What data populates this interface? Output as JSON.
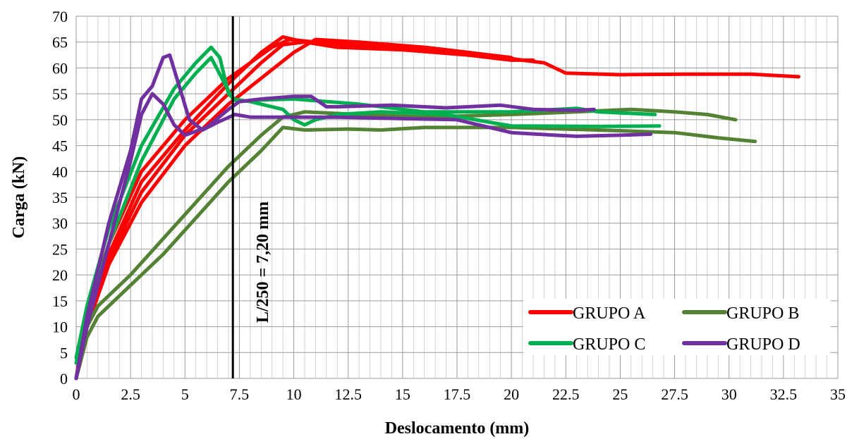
{
  "chart_data": {
    "type": "line",
    "xlabel": "Deslocamento (mm)",
    "ylabel": "Carga (kN)",
    "xlim": [
      0,
      35
    ],
    "ylim": [
      0,
      70
    ],
    "xticks": [
      "0",
      "2.5",
      "5",
      "7.5",
      "10",
      "12.5",
      "15",
      "17.5",
      "20",
      "22.5",
      "25",
      "27.5",
      "30",
      "32.5",
      "35"
    ],
    "yticks": [
      "0",
      "5",
      "10",
      "15",
      "20",
      "25",
      "30",
      "35",
      "40",
      "45",
      "50",
      "55",
      "60",
      "65",
      "70"
    ],
    "grid": true,
    "legend_position": "bottom-right",
    "reference_line": {
      "x": 7.2,
      "label": "L/250 = 7,20 mm",
      "color": "#000000"
    },
    "legend": [
      {
        "label": "GRUPO A",
        "color": "#ff0000"
      },
      {
        "label": "GRUPO B",
        "color": "#548235"
      },
      {
        "label": "GRUPO C",
        "color": "#00b050"
      },
      {
        "label": "GRUPO D",
        "color": "#7030a0"
      }
    ],
    "series": [
      {
        "name": "GRUPO A",
        "color": "#ff0000",
        "points": [
          [
            0,
            0
          ],
          [
            0.5,
            12
          ],
          [
            1.5,
            24
          ],
          [
            3,
            38
          ],
          [
            5,
            48
          ],
          [
            7,
            57
          ],
          [
            8.5,
            63
          ],
          [
            9.5,
            66
          ],
          [
            10.5,
            65
          ],
          [
            12,
            64
          ],
          [
            15,
            63.5
          ],
          [
            18,
            62.5
          ],
          [
            20,
            61.5
          ],
          [
            21,
            61.5
          ]
        ]
      },
      {
        "name": "GRUPO A",
        "color": "#ff0000",
        "points": [
          [
            0,
            0
          ],
          [
            0.5,
            10
          ],
          [
            1.5,
            22
          ],
          [
            3,
            34
          ],
          [
            5,
            45
          ],
          [
            7,
            53
          ],
          [
            8.5,
            58
          ],
          [
            10,
            63
          ],
          [
            11,
            65.5
          ],
          [
            13,
            65
          ],
          [
            16,
            64
          ],
          [
            18,
            63
          ],
          [
            20.5,
            61.5
          ],
          [
            21.5,
            61
          ],
          [
            22.5,
            59
          ],
          [
            25,
            58.7
          ],
          [
            28,
            58.8
          ],
          [
            31,
            58.8
          ],
          [
            33.2,
            58.3
          ]
        ]
      },
      {
        "name": "GRUPO A",
        "color": "#ff0000",
        "points": [
          [
            0,
            0
          ],
          [
            0.5,
            11
          ],
          [
            1.5,
            23
          ],
          [
            3,
            36
          ],
          [
            5,
            47
          ],
          [
            7,
            55
          ],
          [
            8.5,
            61
          ],
          [
            9.5,
            64.5
          ],
          [
            10.5,
            65
          ],
          [
            13,
            64.5
          ],
          [
            16,
            64
          ],
          [
            18,
            63
          ],
          [
            20,
            62
          ]
        ]
      },
      {
        "name": "GRUPO A",
        "color": "#ff0000",
        "points": [
          [
            0,
            0
          ],
          [
            0.5,
            13
          ],
          [
            1.5,
            26
          ],
          [
            3,
            40
          ],
          [
            5,
            50
          ],
          [
            7,
            58
          ],
          [
            8,
            61
          ],
          [
            9,
            64
          ],
          [
            9.8,
            65.5
          ],
          [
            11,
            65
          ],
          [
            14,
            64
          ],
          [
            17,
            63
          ],
          [
            19.5,
            62
          ]
        ]
      },
      {
        "name": "GRUPO B",
        "color": "#548235",
        "points": [
          [
            0,
            0
          ],
          [
            0.5,
            8
          ],
          [
            1,
            12
          ],
          [
            2.5,
            18
          ],
          [
            4,
            24
          ],
          [
            5.5,
            31
          ],
          [
            7,
            38
          ],
          [
            8.5,
            44
          ],
          [
            9.5,
            48.5
          ],
          [
            10.5,
            48
          ],
          [
            12.5,
            48.2
          ],
          [
            14,
            48
          ],
          [
            16,
            48.5
          ],
          [
            18.5,
            48.5
          ],
          [
            20,
            48.5
          ],
          [
            24,
            48
          ],
          [
            27.5,
            47.5
          ],
          [
            29.5,
            46.5
          ],
          [
            31.2,
            45.8
          ]
        ]
      },
      {
        "name": "GRUPO B",
        "color": "#548235",
        "points": [
          [
            0,
            0
          ],
          [
            0.5,
            10
          ],
          [
            1,
            14
          ],
          [
            2.5,
            20
          ],
          [
            4,
            27
          ],
          [
            5.5,
            34
          ],
          [
            7,
            41
          ],
          [
            8.5,
            47
          ],
          [
            9.5,
            50.5
          ],
          [
            10.5,
            51.5
          ],
          [
            13,
            51
          ],
          [
            16,
            50.5
          ],
          [
            20,
            51
          ],
          [
            23,
            51.5
          ],
          [
            25.5,
            52
          ],
          [
            27.5,
            51.5
          ],
          [
            29,
            51
          ],
          [
            30.3,
            50
          ]
        ]
      },
      {
        "name": "GRUPO C",
        "color": "#00b050",
        "points": [
          [
            0,
            3
          ],
          [
            0.5,
            12
          ],
          [
            1.5,
            26
          ],
          [
            3,
            42
          ],
          [
            4.5,
            54
          ],
          [
            5.5,
            59
          ],
          [
            6.2,
            62
          ],
          [
            6.7,
            58
          ],
          [
            7.2,
            54
          ],
          [
            8,
            53.5
          ],
          [
            9.5,
            52
          ],
          [
            10,
            50
          ],
          [
            10.5,
            49
          ],
          [
            11,
            50
          ],
          [
            12,
            51
          ],
          [
            14,
            51.5
          ],
          [
            17,
            51
          ],
          [
            19,
            49.5
          ],
          [
            20,
            48.8
          ],
          [
            24,
            48.7
          ],
          [
            26.8,
            48.8
          ]
        ]
      },
      {
        "name": "GRUPO C",
        "color": "#00b050",
        "points": [
          [
            0,
            4
          ],
          [
            0.5,
            14
          ],
          [
            1.5,
            29
          ],
          [
            3,
            45
          ],
          [
            4.5,
            56
          ],
          [
            5.5,
            61
          ],
          [
            6.2,
            64
          ],
          [
            6.6,
            62
          ],
          [
            7,
            55
          ],
          [
            7.4,
            53.5
          ],
          [
            8.5,
            53.8
          ],
          [
            10,
            54
          ],
          [
            13,
            53
          ],
          [
            16,
            51.5
          ],
          [
            20,
            51.5
          ],
          [
            23,
            52.2
          ],
          [
            24,
            51.5
          ],
          [
            26.6,
            51
          ]
        ]
      },
      {
        "name": "GRUPO D",
        "color": "#7030a0",
        "points": [
          [
            0,
            0
          ],
          [
            0.5,
            12
          ],
          [
            1.5,
            30
          ],
          [
            2.5,
            44
          ],
          [
            3,
            54
          ],
          [
            3.5,
            56.5
          ],
          [
            4,
            62
          ],
          [
            4.3,
            62.5
          ],
          [
            4.7,
            57
          ],
          [
            5.2,
            50
          ],
          [
            5.8,
            48
          ],
          [
            6.5,
            49.5
          ],
          [
            7.3,
            51
          ],
          [
            8,
            50.5
          ],
          [
            9.5,
            50.5
          ],
          [
            12,
            50.5
          ],
          [
            15,
            50.2
          ],
          [
            17.5,
            50
          ],
          [
            19,
            48.5
          ],
          [
            20,
            47.5
          ],
          [
            22,
            47
          ],
          [
            23,
            46.8
          ],
          [
            25,
            47
          ],
          [
            26.4,
            47.2
          ]
        ]
      },
      {
        "name": "GRUPO D",
        "color": "#7030a0",
        "points": [
          [
            0,
            0
          ],
          [
            0.5,
            10
          ],
          [
            1.5,
            26
          ],
          [
            2.5,
            42
          ],
          [
            3,
            51
          ],
          [
            3.5,
            55
          ],
          [
            4,
            53
          ],
          [
            4.5,
            49
          ],
          [
            5,
            47
          ],
          [
            6,
            48.5
          ],
          [
            7,
            52
          ],
          [
            7.5,
            53.5
          ],
          [
            8.5,
            54
          ],
          [
            10,
            54.5
          ],
          [
            10.8,
            54.5
          ],
          [
            11.5,
            52.5
          ],
          [
            12,
            52.5
          ],
          [
            14.5,
            52.8
          ],
          [
            17,
            52.3
          ],
          [
            19.5,
            52.8
          ],
          [
            21,
            52
          ],
          [
            23,
            51.8
          ],
          [
            23.8,
            52
          ]
        ]
      }
    ]
  }
}
